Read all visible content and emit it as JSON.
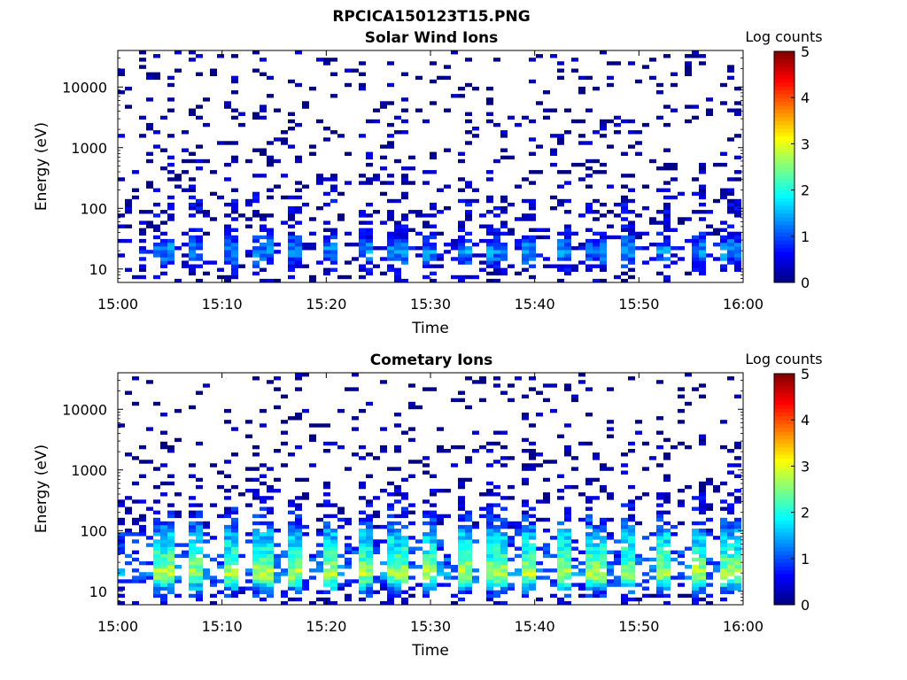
{
  "figure": {
    "title": "RPCICA150123T15.PNG"
  },
  "chart_data": [
    {
      "type": "heatmap",
      "title": "Solar Wind Ions",
      "xlabel": "Time",
      "ylabel": "Energy (eV)",
      "x_tick_labels": [
        "15:00",
        "15:10",
        "15:20",
        "15:30",
        "15:40",
        "15:50",
        "16:00"
      ],
      "xlim": [
        "15:00",
        "16:00"
      ],
      "y_tick_labels": [
        "10",
        "100",
        "1000",
        "10000"
      ],
      "y_ticks": [
        10,
        100,
        1000,
        10000
      ],
      "ylim": [
        6,
        40000
      ],
      "y_scale": "log",
      "colorbar": {
        "title": "Log counts",
        "ticks": [
          "0",
          "1",
          "2",
          "3",
          "4",
          "5"
        ],
        "range": [
          0,
          5
        ],
        "colormap": "jet"
      },
      "sweep_period_min": 3.2,
      "first_sweep_min": 3.6,
      "profile": [
        {
          "energy": 7,
          "level": 0.3
        },
        {
          "energy": 10,
          "level": 0.5
        },
        {
          "energy": 14,
          "level": 1.0
        },
        {
          "energy": 20,
          "level": 1.3
        },
        {
          "energy": 28,
          "level": 1.0
        },
        {
          "energy": 40,
          "level": 0.5
        },
        {
          "energy": 60,
          "level": 0.35
        },
        {
          "energy": 90,
          "level": 0.4
        },
        {
          "energy": 120,
          "level": 0.5
        },
        {
          "energy": 150,
          "level": 0.35
        },
        {
          "energy": 220,
          "level": 0.2
        },
        {
          "energy": 400,
          "level": 0.15
        },
        {
          "energy": 800,
          "level": 0.15
        },
        {
          "energy": 2000,
          "level": 0.1
        },
        {
          "energy": 5000,
          "level": 0.05
        },
        {
          "energy": 15000,
          "level": 0.05
        },
        {
          "energy": 40000,
          "level": 0.05
        }
      ]
    },
    {
      "type": "heatmap",
      "title": "Cometary Ions",
      "xlabel": "Time",
      "ylabel": "Energy (eV)",
      "x_tick_labels": [
        "15:00",
        "15:10",
        "15:20",
        "15:30",
        "15:40",
        "15:50",
        "16:00"
      ],
      "xlim": [
        "15:00",
        "16:00"
      ],
      "y_tick_labels": [
        "10",
        "100",
        "1000",
        "10000"
      ],
      "y_ticks": [
        10,
        100,
        1000,
        10000
      ],
      "ylim": [
        6,
        40000
      ],
      "y_scale": "log",
      "colorbar": {
        "title": "Log counts",
        "ticks": [
          "0",
          "1",
          "2",
          "3",
          "4",
          "5"
        ],
        "range": [
          0,
          5
        ],
        "colormap": "jet"
      },
      "sweep_period_min": 3.2,
      "first_sweep_min": 3.6,
      "profile": [
        {
          "energy": 7,
          "level": 0.4
        },
        {
          "energy": 10,
          "level": 1.0
        },
        {
          "energy": 14,
          "level": 2.0
        },
        {
          "energy": 20,
          "level": 2.8
        },
        {
          "energy": 28,
          "level": 2.4
        },
        {
          "energy": 40,
          "level": 2.0
        },
        {
          "energy": 60,
          "level": 1.8
        },
        {
          "energy": 90,
          "level": 1.5
        },
        {
          "energy": 130,
          "level": 1.0
        },
        {
          "energy": 200,
          "level": 0.6
        },
        {
          "energy": 350,
          "level": 0.4
        },
        {
          "energy": 700,
          "level": 0.2
        },
        {
          "energy": 1500,
          "level": 0.1
        },
        {
          "energy": 2500,
          "level": 0.2
        },
        {
          "energy": 6000,
          "level": 0.0
        },
        {
          "energy": 40000,
          "level": 0.0
        }
      ]
    }
  ]
}
